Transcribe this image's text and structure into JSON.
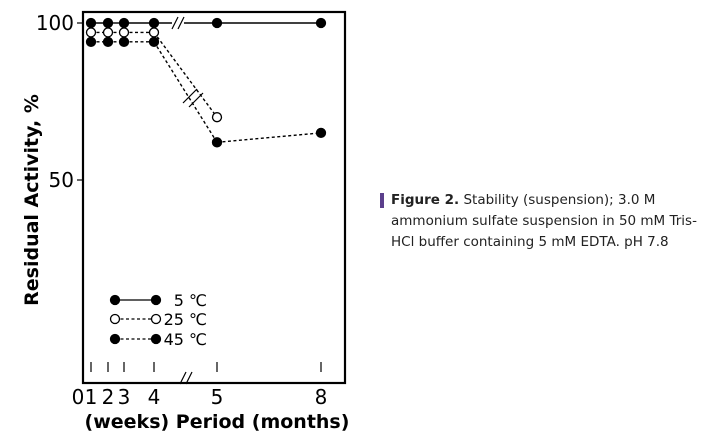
{
  "caption": {
    "label": "Figure 2.",
    "text": " Stability (suspension); 3.0 M ammonium sulfate suspension in 50 mM Tris-HCl buffer containing 5 mM EDTA. pH 7.8"
  },
  "chart_data": {
    "type": "line",
    "ylabel": "Residual Activity, %",
    "xlabel": "(weeks) Period (months)",
    "y_ticks": [
      "100",
      "50"
    ],
    "x_ticks_weeks": [
      "0",
      "1",
      "2",
      "3",
      "4"
    ],
    "x_ticks_months": [
      "5",
      "8"
    ],
    "break_between": [
      "4 weeks",
      "5 months"
    ],
    "ylim": [
      0,
      100
    ],
    "x_categories": [
      "1 week",
      "2 weeks",
      "3 weeks",
      "4 weeks",
      "5 months",
      "8 months"
    ],
    "series": [
      {
        "name": "5 ℃",
        "marker": "filled",
        "line": "solid",
        "values": [
          100,
          100,
          100,
          100,
          100,
          100
        ]
      },
      {
        "name": "25 ℃",
        "marker": "open",
        "line": "dotted",
        "values": [
          97,
          97,
          97,
          97,
          70,
          null
        ]
      },
      {
        "name": "45 ℃",
        "marker": "filled",
        "line": "dotted",
        "values": [
          94,
          94,
          94,
          94,
          62,
          65
        ]
      }
    ],
    "colors": {
      "ink": "#000000",
      "caption_bar": "#5b3f8c"
    }
  }
}
